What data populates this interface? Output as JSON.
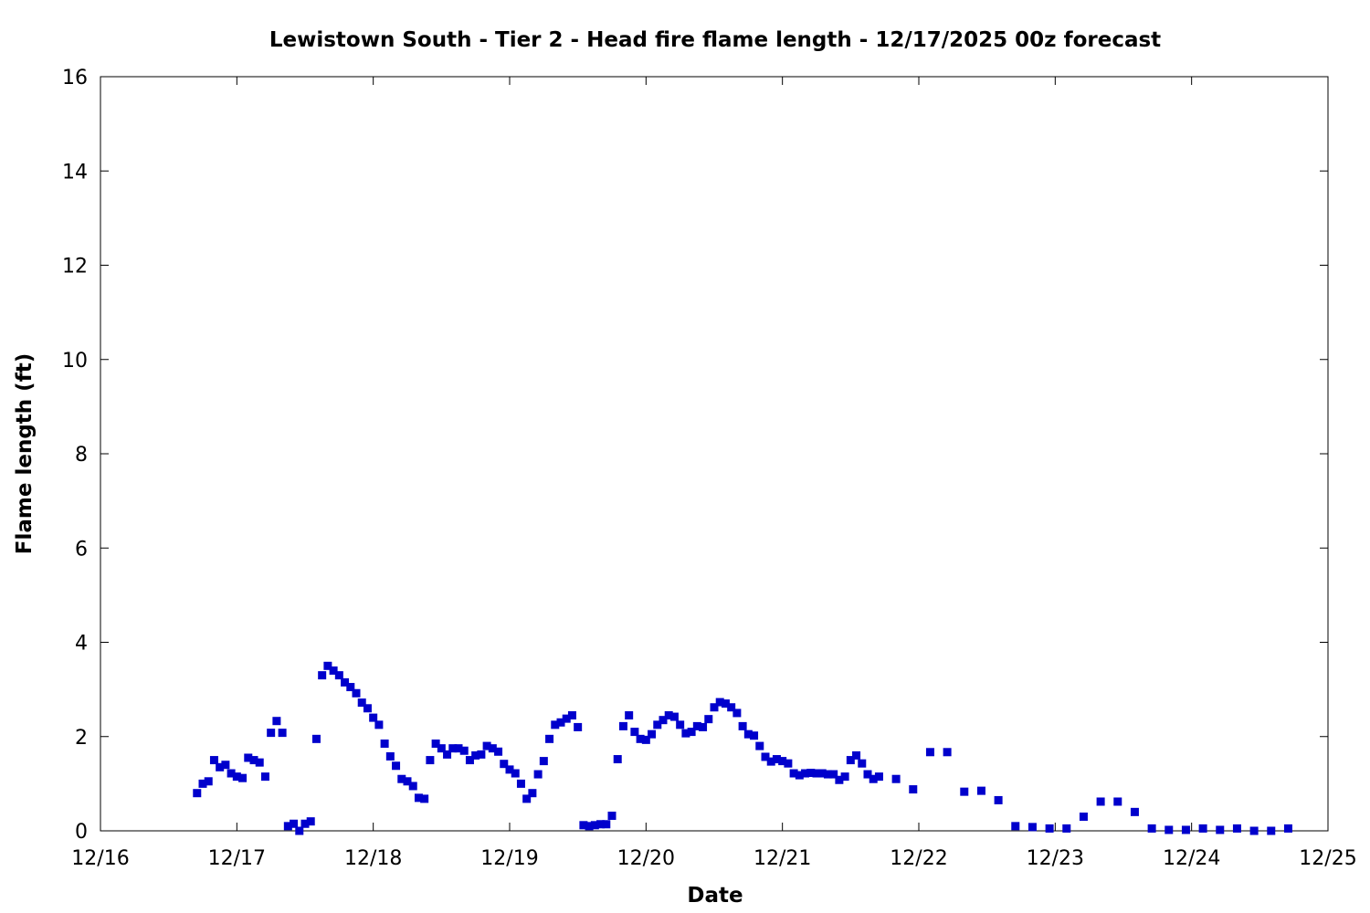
{
  "chart_data": {
    "type": "scatter",
    "title": "Lewistown South - Tier 2 - Head fire flame length - 12/17/2025 00z forecast",
    "xlabel": "Date",
    "ylabel": "Flame length (ft)",
    "xlim": [
      "12/16",
      "12/25"
    ],
    "ylim": [
      0,
      16
    ],
    "x_ticks": [
      "12/16",
      "12/17",
      "12/18",
      "12/19",
      "12/20",
      "12/21",
      "12/22",
      "12/23",
      "12/24",
      "12/25"
    ],
    "y_ticks": [
      0,
      2,
      4,
      6,
      8,
      10,
      12,
      14,
      16
    ],
    "grid": false,
    "marker_color": "#0000cc",
    "series": [
      {
        "points": [
          [
            "12/16 17:00",
            0.8
          ],
          [
            "12/16 18:00",
            1.0
          ],
          [
            "12/16 19:00",
            1.05
          ],
          [
            "12/16 20:00",
            1.5
          ],
          [
            "12/16 21:00",
            1.35
          ],
          [
            "12/16 22:00",
            1.4
          ],
          [
            "12/16 23:00",
            1.22
          ],
          [
            "12/17 00:00",
            1.15
          ],
          [
            "12/17 01:00",
            1.12
          ],
          [
            "12/17 02:00",
            1.55
          ],
          [
            "12/17 03:00",
            1.5
          ],
          [
            "12/17 04:00",
            1.45
          ],
          [
            "12/17 05:00",
            1.15
          ],
          [
            "12/17 06:00",
            2.08
          ],
          [
            "12/17 07:00",
            2.33
          ],
          [
            "12/17 08:00",
            2.08
          ],
          [
            "12/17 09:00",
            0.1
          ],
          [
            "12/17 10:00",
            0.15
          ],
          [
            "12/17 11:00",
            0.0
          ],
          [
            "12/17 12:00",
            0.15
          ],
          [
            "12/17 13:00",
            0.2
          ],
          [
            "12/17 14:00",
            1.95
          ],
          [
            "12/17 15:00",
            3.3
          ],
          [
            "12/17 16:00",
            3.5
          ],
          [
            "12/17 17:00",
            3.4
          ],
          [
            "12/17 18:00",
            3.3
          ],
          [
            "12/17 19:00",
            3.15
          ],
          [
            "12/17 20:00",
            3.05
          ],
          [
            "12/17 21:00",
            2.92
          ],
          [
            "12/17 22:00",
            2.72
          ],
          [
            "12/17 23:00",
            2.6
          ],
          [
            "12/18 00:00",
            2.4
          ],
          [
            "12/18 01:00",
            2.25
          ],
          [
            "12/18 02:00",
            1.85
          ],
          [
            "12/18 03:00",
            1.58
          ],
          [
            "12/18 04:00",
            1.38
          ],
          [
            "12/18 05:00",
            1.1
          ],
          [
            "12/18 06:00",
            1.05
          ],
          [
            "12/18 07:00",
            0.95
          ],
          [
            "12/18 08:00",
            0.7
          ],
          [
            "12/18 09:00",
            0.68
          ],
          [
            "12/18 10:00",
            1.5
          ],
          [
            "12/18 11:00",
            1.85
          ],
          [
            "12/18 12:00",
            1.75
          ],
          [
            "12/18 13:00",
            1.62
          ],
          [
            "12/18 14:00",
            1.75
          ],
          [
            "12/18 15:00",
            1.75
          ],
          [
            "12/18 16:00",
            1.7
          ],
          [
            "12/18 17:00",
            1.5
          ],
          [
            "12/18 18:00",
            1.6
          ],
          [
            "12/18 19:00",
            1.62
          ],
          [
            "12/18 20:00",
            1.8
          ],
          [
            "12/18 21:00",
            1.75
          ],
          [
            "12/18 22:00",
            1.68
          ],
          [
            "12/18 23:00",
            1.42
          ],
          [
            "12/19 00:00",
            1.3
          ],
          [
            "12/19 01:00",
            1.22
          ],
          [
            "12/19 02:00",
            1.0
          ],
          [
            "12/19 03:00",
            0.68
          ],
          [
            "12/19 04:00",
            0.8
          ],
          [
            "12/19 05:00",
            1.2
          ],
          [
            "12/19 06:00",
            1.48
          ],
          [
            "12/19 07:00",
            1.95
          ],
          [
            "12/19 08:00",
            2.25
          ],
          [
            "12/19 09:00",
            2.3
          ],
          [
            "12/19 10:00",
            2.38
          ],
          [
            "12/19 11:00",
            2.45
          ],
          [
            "12/19 12:00",
            2.2
          ],
          [
            "12/19 13:00",
            0.12
          ],
          [
            "12/19 14:00",
            0.1
          ],
          [
            "12/19 15:00",
            0.12
          ],
          [
            "12/19 16:00",
            0.14
          ],
          [
            "12/19 17:00",
            0.14
          ],
          [
            "12/19 18:00",
            0.32
          ],
          [
            "12/19 19:00",
            1.52
          ],
          [
            "12/19 20:00",
            2.22
          ],
          [
            "12/19 21:00",
            2.45
          ],
          [
            "12/19 22:00",
            2.1
          ],
          [
            "12/19 23:00",
            1.95
          ],
          [
            "12/20 00:00",
            1.93
          ],
          [
            "12/20 01:00",
            2.05
          ],
          [
            "12/20 02:00",
            2.25
          ],
          [
            "12/20 03:00",
            2.35
          ],
          [
            "12/20 04:00",
            2.45
          ],
          [
            "12/20 05:00",
            2.42
          ],
          [
            "12/20 06:00",
            2.25
          ],
          [
            "12/20 07:00",
            2.07
          ],
          [
            "12/20 08:00",
            2.1
          ],
          [
            "12/20 09:00",
            2.22
          ],
          [
            "12/20 10:00",
            2.2
          ],
          [
            "12/20 11:00",
            2.37
          ],
          [
            "12/20 12:00",
            2.62
          ],
          [
            "12/20 13:00",
            2.73
          ],
          [
            "12/20 14:00",
            2.7
          ],
          [
            "12/20 15:00",
            2.62
          ],
          [
            "12/20 16:00",
            2.5
          ],
          [
            "12/20 17:00",
            2.22
          ],
          [
            "12/20 18:00",
            2.05
          ],
          [
            "12/20 19:00",
            2.02
          ],
          [
            "12/20 20:00",
            1.8
          ],
          [
            "12/20 21:00",
            1.57
          ],
          [
            "12/20 22:00",
            1.47
          ],
          [
            "12/20 23:00",
            1.52
          ],
          [
            "12/21 00:00",
            1.48
          ],
          [
            "12/21 01:00",
            1.43
          ],
          [
            "12/21 02:00",
            1.22
          ],
          [
            "12/21 03:00",
            1.18
          ],
          [
            "12/21 04:00",
            1.22
          ],
          [
            "12/21 05:00",
            1.23
          ],
          [
            "12/21 06:00",
            1.22
          ],
          [
            "12/21 07:00",
            1.22
          ],
          [
            "12/21 08:00",
            1.2
          ],
          [
            "12/21 09:00",
            1.2
          ],
          [
            "12/21 10:00",
            1.08
          ],
          [
            "12/21 11:00",
            1.15
          ],
          [
            "12/21 12:00",
            1.5
          ],
          [
            "12/21 13:00",
            1.6
          ],
          [
            "12/21 14:00",
            1.43
          ],
          [
            "12/21 15:00",
            1.2
          ],
          [
            "12/21 16:00",
            1.1
          ],
          [
            "12/21 17:00",
            1.15
          ],
          [
            "12/21 20:00",
            1.1
          ],
          [
            "12/21 23:00",
            0.88
          ],
          [
            "12/22 02:00",
            1.67
          ],
          [
            "12/22 05:00",
            1.67
          ],
          [
            "12/22 08:00",
            0.83
          ],
          [
            "12/22 11:00",
            0.85
          ],
          [
            "12/22 14:00",
            0.65
          ],
          [
            "12/22 17:00",
            0.1
          ],
          [
            "12/22 20:00",
            0.08
          ],
          [
            "12/22 23:00",
            0.05
          ],
          [
            "12/23 02:00",
            0.05
          ],
          [
            "12/23 05:00",
            0.3
          ],
          [
            "12/23 08:00",
            0.62
          ],
          [
            "12/23 11:00",
            0.62
          ],
          [
            "12/23 14:00",
            0.4
          ],
          [
            "12/23 17:00",
            0.05
          ],
          [
            "12/23 20:00",
            0.02
          ],
          [
            "12/23 23:00",
            0.02
          ],
          [
            "12/24 02:00",
            0.05
          ],
          [
            "12/24 05:00",
            0.02
          ],
          [
            "12/24 08:00",
            0.05
          ],
          [
            "12/24 11:00",
            0.0
          ],
          [
            "12/24 14:00",
            0.0
          ],
          [
            "12/24 17:00",
            0.05
          ]
        ]
      }
    ]
  }
}
